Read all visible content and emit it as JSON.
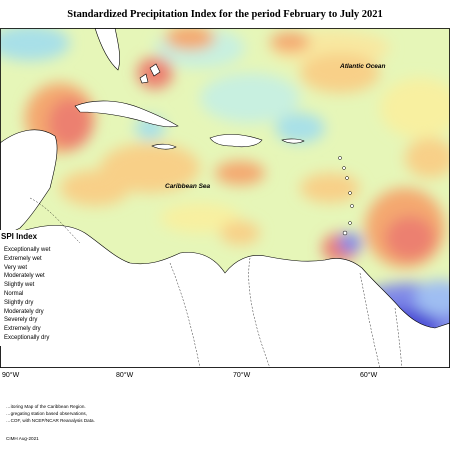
{
  "title": "Standardized Precipitation Index for the period February to July 2021",
  "map_labels": {
    "atlantic": "Atlantic Ocean",
    "caribbean": "Caribbean Sea"
  },
  "longitude_labels": [
    "90°W",
    "80°W",
    "70°W",
    "60°W"
  ],
  "legend": {
    "title": "SPI Index",
    "items": [
      {
        "label": "Exceptionally wet",
        "color": "#4b4bd6"
      },
      {
        "label": "Extremely wet",
        "color": "#7f88e8"
      },
      {
        "label": "Very wet",
        "color": "#9fbef2"
      },
      {
        "label": "Moderately wet",
        "color": "#a8e0e8"
      },
      {
        "label": "Slightly wet",
        "color": "#c8f0e0"
      },
      {
        "label": "Normal",
        "color": "#eef8b0"
      },
      {
        "label": "Slightly dry",
        "color": "#f8f0a0"
      },
      {
        "label": "Moderately dry",
        "color": "#f8d088"
      },
      {
        "label": "Severely dry",
        "color": "#f4a870"
      },
      {
        "label": "Extremely dry",
        "color": "#ec8070"
      },
      {
        "label": "Exceptionally dry",
        "color": "#e06060"
      }
    ]
  },
  "footer": {
    "line1": "…itoring Map of the Caribbean Region.",
    "line2": "…gregating station based observations,",
    "line3": "…COF, with NCEP/NCAR Reanalysis Data.",
    "credit": "CIMH Aug-2021"
  }
}
